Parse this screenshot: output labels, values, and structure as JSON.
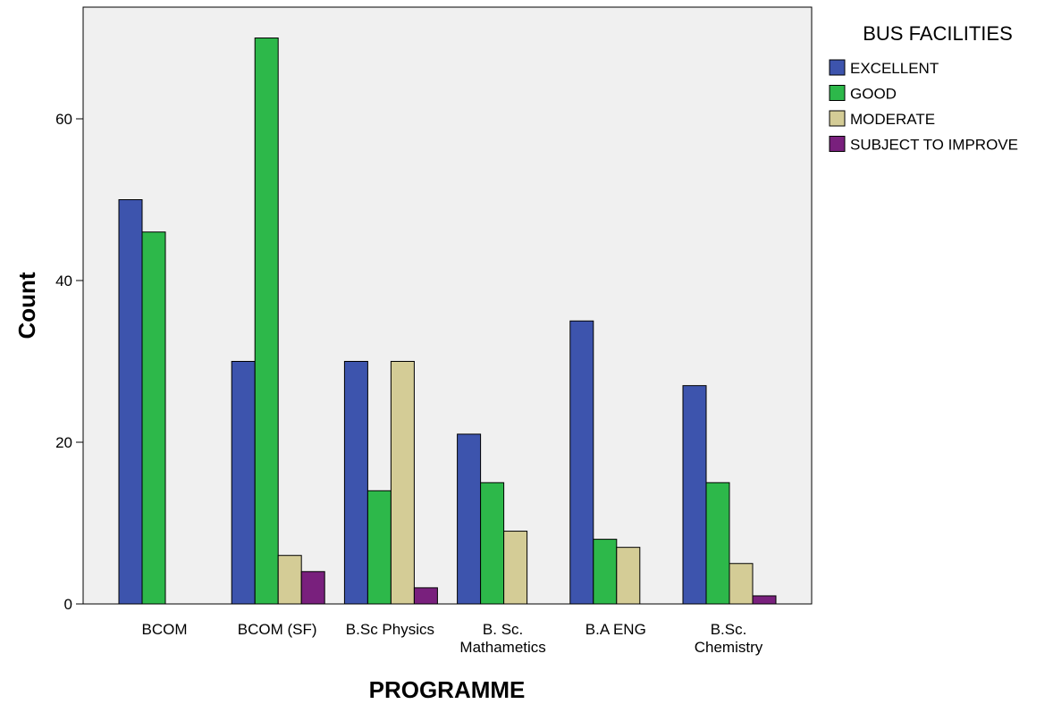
{
  "chart_data": {
    "type": "bar",
    "xlabel": "PROGRAMME",
    "ylabel": "Count",
    "ylim": [
      0,
      70
    ],
    "yticks": [
      0,
      20,
      40,
      60
    ],
    "categories": [
      [
        "BCOM"
      ],
      [
        "BCOM (SF)"
      ],
      [
        "B.Sc Physics"
      ],
      [
        "B. Sc.",
        "Mathametics"
      ],
      [
        "B.A ENG"
      ],
      [
        "B.Sc.",
        "Chemistry"
      ]
    ],
    "legend_title": "BUS FACILITIES",
    "legend_position": "right",
    "grid": false,
    "plot_background": "#f0f0f0",
    "series": [
      {
        "name": "EXCELLENT",
        "color": "#3d54ad",
        "values": [
          50,
          30,
          30,
          21,
          35,
          27
        ]
      },
      {
        "name": "GOOD",
        "color": "#2db84a",
        "values": [
          46,
          70,
          14,
          15,
          8,
          15
        ]
      },
      {
        "name": "MODERATE",
        "color": "#d4cc96",
        "values": [
          0,
          6,
          30,
          9,
          7,
          5
        ]
      },
      {
        "name": "SUBJECT TO IMPROVE",
        "color": "#79207d",
        "values": [
          0,
          4,
          2,
          0,
          0,
          1
        ]
      }
    ]
  }
}
